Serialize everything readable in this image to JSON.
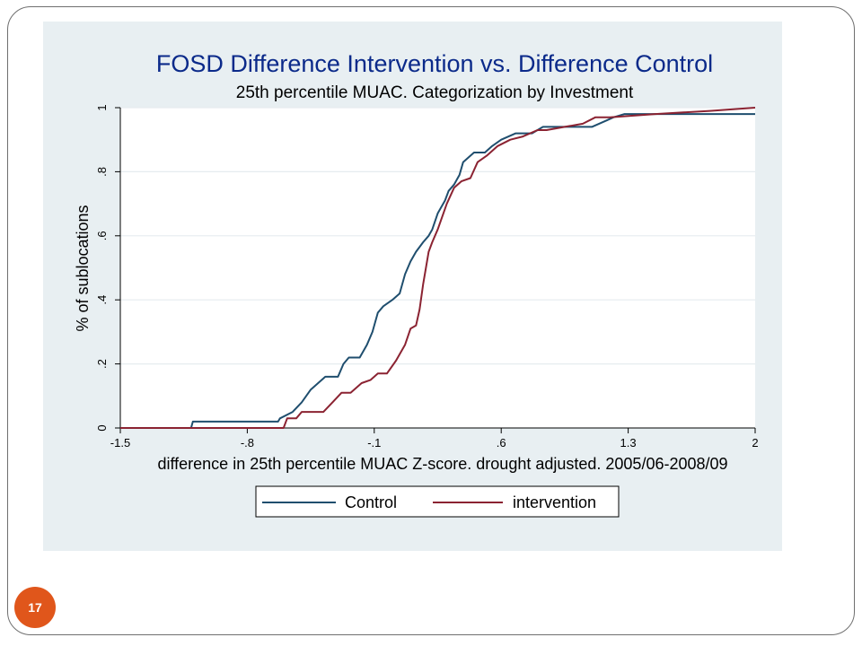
{
  "slide": {
    "page_number": "17"
  },
  "chart_data": {
    "type": "line",
    "title": "FOSD Difference Intervention vs. Difference Control",
    "subtitle": "25th percentile MUAC. Categorization by Investment",
    "xlabel": "difference in 25th percentile MUAC Z-score. drought adjusted. 2005/06-2008/09",
    "ylabel": "% of sublocations",
    "xlim": [
      -1.5,
      2
    ],
    "ylim": [
      0,
      1
    ],
    "x_ticks": [
      {
        "value": -1.5,
        "label": "-1.5"
      },
      {
        "value": -0.8,
        "label": "-.8"
      },
      {
        "value": -0.1,
        "label": "-.1"
      },
      {
        "value": 0.6,
        "label": ".6"
      },
      {
        "value": 1.3,
        "label": "1.3"
      },
      {
        "value": 2,
        "label": "2"
      }
    ],
    "y_ticks": [
      {
        "value": 0,
        "label": "0"
      },
      {
        "value": 0.2,
        "label": ".2"
      },
      {
        "value": 0.4,
        "label": ".4"
      },
      {
        "value": 0.6,
        "label": ".6"
      },
      {
        "value": 0.8,
        "label": ".8"
      },
      {
        "value": 1,
        "label": "1"
      }
    ],
    "grid": true,
    "legend_position": "bottom",
    "series": [
      {
        "name": "Control",
        "color": "#1f4e6e",
        "points": [
          [
            -1.5,
            0
          ],
          [
            -1.11,
            0
          ],
          [
            -1.1,
            0.02
          ],
          [
            -0.72,
            0.02
          ],
          [
            -0.71,
            0.02
          ],
          [
            -0.63,
            0.02
          ],
          [
            -0.62,
            0.03
          ],
          [
            -0.55,
            0.05
          ],
          [
            -0.5,
            0.08
          ],
          [
            -0.45,
            0.12
          ],
          [
            -0.37,
            0.16
          ],
          [
            -0.3,
            0.16
          ],
          [
            -0.27,
            0.2
          ],
          [
            -0.24,
            0.22
          ],
          [
            -0.18,
            0.22
          ],
          [
            -0.14,
            0.26
          ],
          [
            -0.11,
            0.3
          ],
          [
            -0.08,
            0.36
          ],
          [
            -0.05,
            0.38
          ],
          [
            0.0,
            0.4
          ],
          [
            0.04,
            0.42
          ],
          [
            0.07,
            0.48
          ],
          [
            0.1,
            0.52
          ],
          [
            0.13,
            0.55
          ],
          [
            0.17,
            0.58
          ],
          [
            0.2,
            0.6
          ],
          [
            0.22,
            0.62
          ],
          [
            0.25,
            0.67
          ],
          [
            0.29,
            0.71
          ],
          [
            0.31,
            0.74
          ],
          [
            0.34,
            0.76
          ],
          [
            0.37,
            0.79
          ],
          [
            0.39,
            0.83
          ],
          [
            0.45,
            0.86
          ],
          [
            0.51,
            0.86
          ],
          [
            0.55,
            0.88
          ],
          [
            0.6,
            0.9
          ],
          [
            0.68,
            0.92
          ],
          [
            0.77,
            0.92
          ],
          [
            0.83,
            0.94
          ],
          [
            1.0,
            0.94
          ],
          [
            1.1,
            0.94
          ],
          [
            1.18,
            0.96
          ],
          [
            1.22,
            0.97
          ],
          [
            1.28,
            0.98
          ],
          [
            2.0,
            0.98
          ]
        ]
      },
      {
        "name": "intervention",
        "color": "#8b2332",
        "points": [
          [
            -1.5,
            0
          ],
          [
            -0.6,
            0
          ],
          [
            -0.58,
            0.03
          ],
          [
            -0.53,
            0.03
          ],
          [
            -0.5,
            0.05
          ],
          [
            -0.38,
            0.05
          ],
          [
            -0.33,
            0.08
          ],
          [
            -0.28,
            0.11
          ],
          [
            -0.23,
            0.11
          ],
          [
            -0.17,
            0.14
          ],
          [
            -0.12,
            0.15
          ],
          [
            -0.08,
            0.17
          ],
          [
            -0.03,
            0.17
          ],
          [
            0.02,
            0.21
          ],
          [
            0.07,
            0.26
          ],
          [
            0.1,
            0.31
          ],
          [
            0.13,
            0.32
          ],
          [
            0.15,
            0.37
          ],
          [
            0.17,
            0.45
          ],
          [
            0.2,
            0.55
          ],
          [
            0.22,
            0.58
          ],
          [
            0.25,
            0.62
          ],
          [
            0.3,
            0.7
          ],
          [
            0.34,
            0.75
          ],
          [
            0.38,
            0.77
          ],
          [
            0.43,
            0.78
          ],
          [
            0.47,
            0.83
          ],
          [
            0.52,
            0.85
          ],
          [
            0.58,
            0.88
          ],
          [
            0.65,
            0.9
          ],
          [
            0.72,
            0.91
          ],
          [
            0.8,
            0.93
          ],
          [
            0.85,
            0.93
          ],
          [
            0.95,
            0.94
          ],
          [
            1.05,
            0.95
          ],
          [
            1.12,
            0.97
          ],
          [
            1.2,
            0.97
          ],
          [
            1.45,
            0.98
          ],
          [
            1.75,
            0.99
          ],
          [
            2.0,
            1.0
          ]
        ]
      }
    ]
  }
}
